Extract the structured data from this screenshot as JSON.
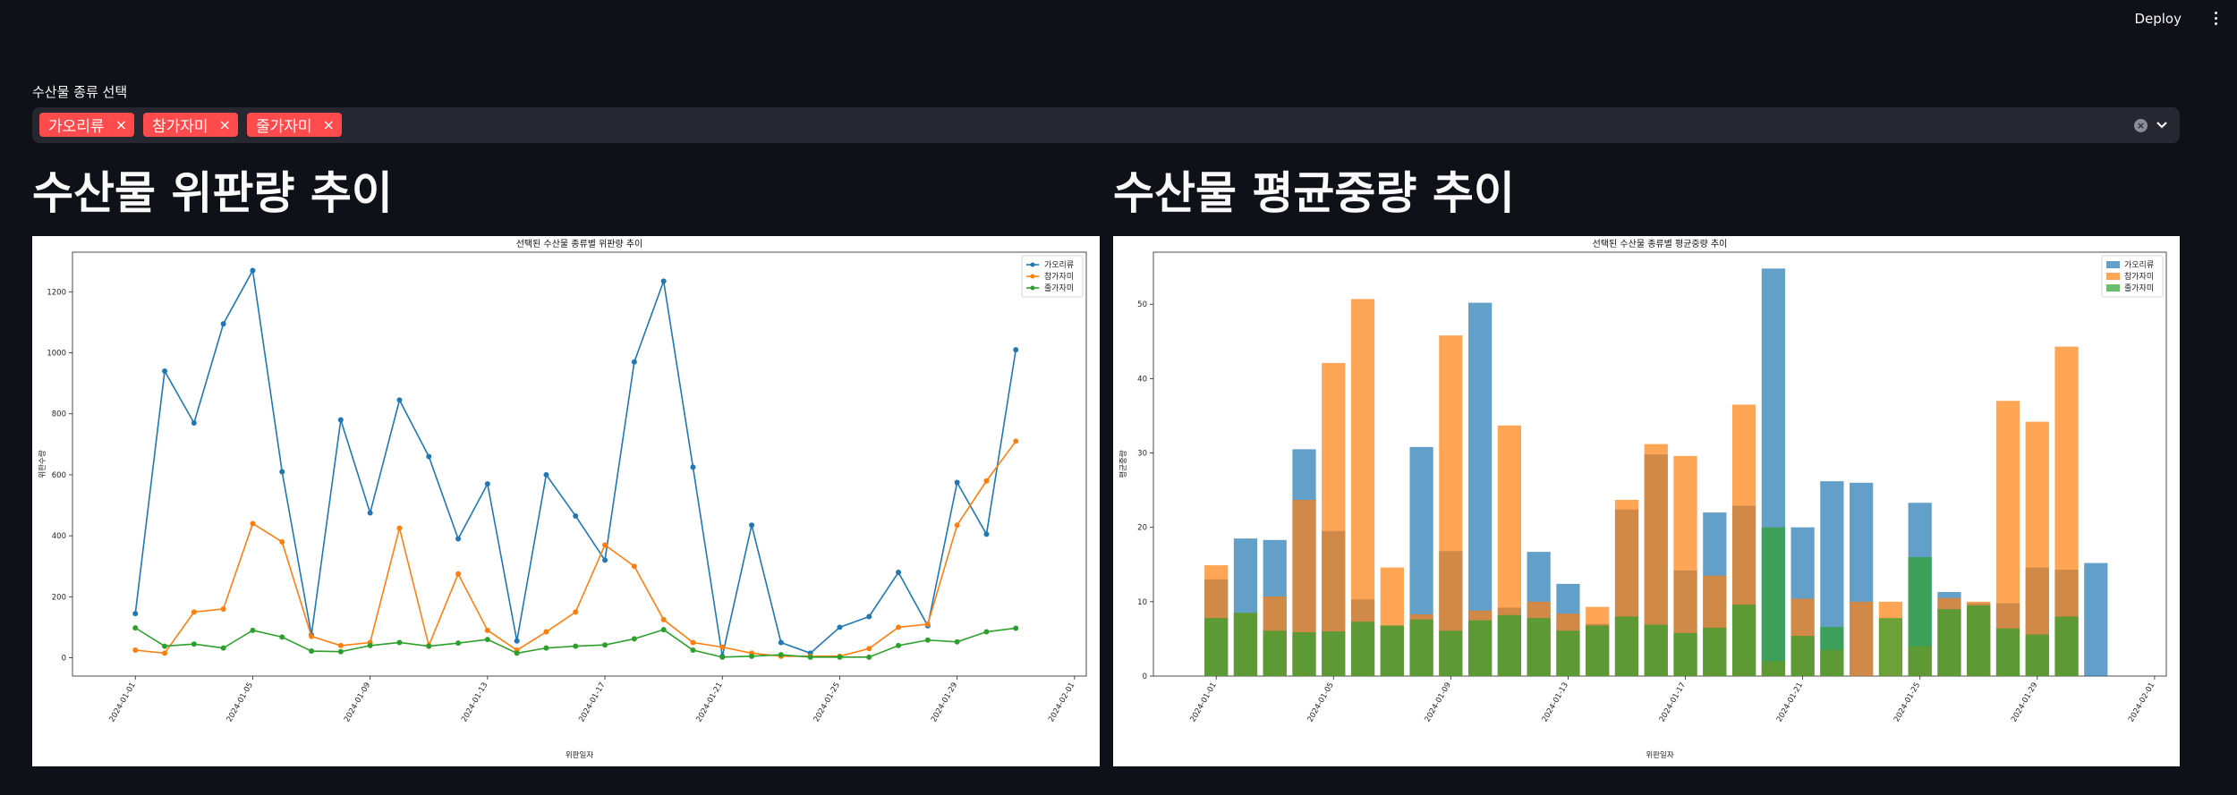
{
  "header": {
    "deploy_label": "Deploy",
    "menu_icon": "kebab-menu-icon"
  },
  "filter": {
    "label": "수산물 종류 선택",
    "selected": [
      "가오리류",
      "참가자미",
      "줄가자미"
    ],
    "remove_glyph": "×",
    "clear_glyph": "×",
    "accent_color": "#ff4b4b"
  },
  "sections": {
    "left_title": "수산물 위판량 추이",
    "right_title": "수산물 평균중량 추이"
  },
  "chart_data": [
    {
      "type": "line",
      "title": "선택된 수산물 종류별 위판량 추이",
      "xlabel": "위판일자",
      "ylabel": "위판수량",
      "ylim": [
        -60,
        1330
      ],
      "yticks": [
        0,
        200,
        400,
        600,
        800,
        1000,
        1200
      ],
      "xticks": [
        "2024-01-01",
        "2024-01-05",
        "2024-01-09",
        "2024-01-13",
        "2024-01-17",
        "2024-01-21",
        "2024-01-25",
        "2024-01-29",
        "2024-02-01"
      ],
      "legend": "top-right",
      "colors": [
        "#1f77b4",
        "#ff7f0e",
        "#2ca02c"
      ],
      "series": [
        {
          "name": "가오리류",
          "values": [
            145,
            940,
            770,
            1095,
            1270,
            610,
            75,
            780,
            475,
            845,
            660,
            390,
            570,
            55,
            600,
            465,
            320,
            970,
            1235,
            625,
            5,
            435,
            50,
            15,
            100,
            135,
            280,
            105,
            575,
            405,
            1010
          ]
        },
        {
          "name": "참가자미",
          "values": [
            25,
            15,
            150,
            160,
            440,
            380,
            70,
            40,
            50,
            425,
            40,
            275,
            90,
            25,
            85,
            150,
            370,
            300,
            125,
            50,
            35,
            15,
            5,
            5,
            5,
            30,
            100,
            110,
            435,
            580,
            710
          ]
        },
        {
          "name": "줄가자미",
          "values": [
            98,
            38,
            45,
            32,
            90,
            68,
            22,
            20,
            40,
            50,
            38,
            48,
            60,
            15,
            32,
            38,
            42,
            62,
            92,
            25,
            2,
            5,
            10,
            2,
            2,
            2,
            40,
            58,
            52,
            85,
            97
          ]
        }
      ]
    },
    {
      "type": "bar",
      "title": "선택된 수산물 종류별 평균중량 추이",
      "xlabel": "위판일자",
      "ylabel": "평균중량",
      "ylim": [
        0,
        57
      ],
      "yticks": [
        0,
        10,
        20,
        30,
        40,
        50
      ],
      "xticks": [
        "2024-01-01",
        "2024-01-05",
        "2024-01-09",
        "2024-01-13",
        "2024-01-17",
        "2024-01-21",
        "2024-01-25",
        "2024-01-29",
        "2024-02-01"
      ],
      "legend": "top-right",
      "colors": [
        "#1f77b4",
        "#ff7f0e",
        "#2ca02c"
      ],
      "series": [
        {
          "name": "가오리류",
          "values": [
            13,
            18.5,
            18.3,
            30.5,
            19.5,
            10.3,
            6.8,
            30.8,
            16.8,
            50.2,
            9.2,
            16.7,
            12.4,
            7,
            22.4,
            29.8,
            14.2,
            22,
            22.9,
            54.8,
            20,
            26.2,
            26,
            0,
            23.3,
            11.3,
            9.8,
            9.8,
            14.6,
            14.3,
            15.2
          ]
        },
        {
          "name": "참가자미",
          "values": [
            14.9,
            8.5,
            10.7,
            23.7,
            42.1,
            50.7,
            14.6,
            8.3,
            45.8,
            8.8,
            33.7,
            10,
            8.4,
            9.3,
            23.7,
            31.2,
            29.6,
            13.5,
            36.5,
            2,
            10.4,
            3.5,
            10,
            10,
            4,
            10.5,
            10,
            37,
            34.2,
            44.3,
            0
          ]
        },
        {
          "name": "줄가자미",
          "values": [
            7.8,
            8.5,
            6.1,
            5.9,
            6,
            7.3,
            6.8,
            7.6,
            6.1,
            7.5,
            8.2,
            7.8,
            6.1,
            6.8,
            8,
            6.9,
            5.8,
            6.5,
            9.6,
            20,
            5.4,
            6.6,
            0,
            7.8,
            16,
            9,
            9.5,
            6.4,
            5.6,
            8,
            0
          ]
        }
      ]
    }
  ]
}
